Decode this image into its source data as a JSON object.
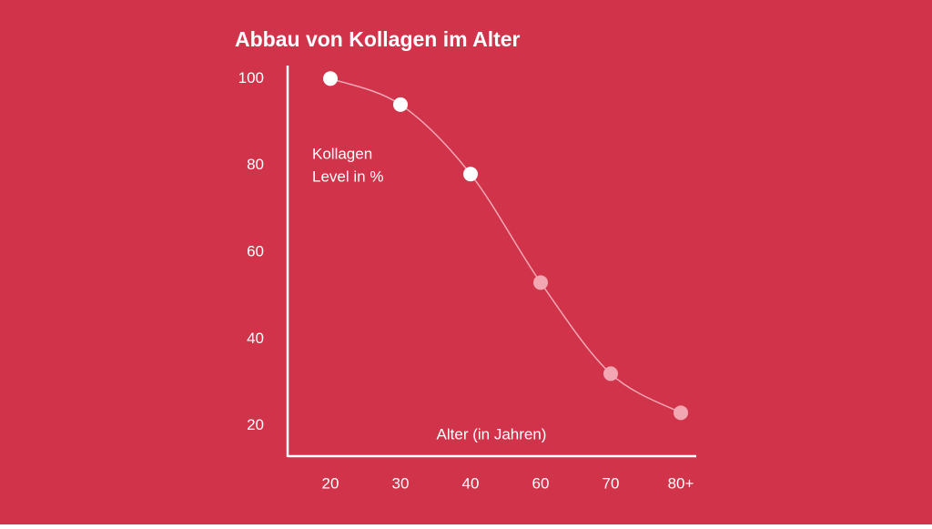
{
  "chart_data": {
    "type": "line",
    "title": "Abbau von Kollagen im Alter",
    "ylabel": [
      "Kollagen",
      "Level in %"
    ],
    "xlabel": "Alter (in Jahren)",
    "categories": [
      "20",
      "30",
      "40",
      "60",
      "70",
      "80+"
    ],
    "series": [
      {
        "color": "#f2a7b3",
        "values": [
          100,
          94,
          78,
          53,
          32,
          23
        ],
        "marker_colors": [
          "#ffffff",
          "#ffffff",
          "#ffffff",
          "#f2a7b3",
          "#f2a7b3",
          "#f2a7b3"
        ]
      }
    ],
    "ylim": [
      13,
      103
    ],
    "yticks": [
      20,
      40,
      60,
      80,
      100
    ],
    "grid": false,
    "background": "#d0334a",
    "axis_color": "#ffffff"
  }
}
